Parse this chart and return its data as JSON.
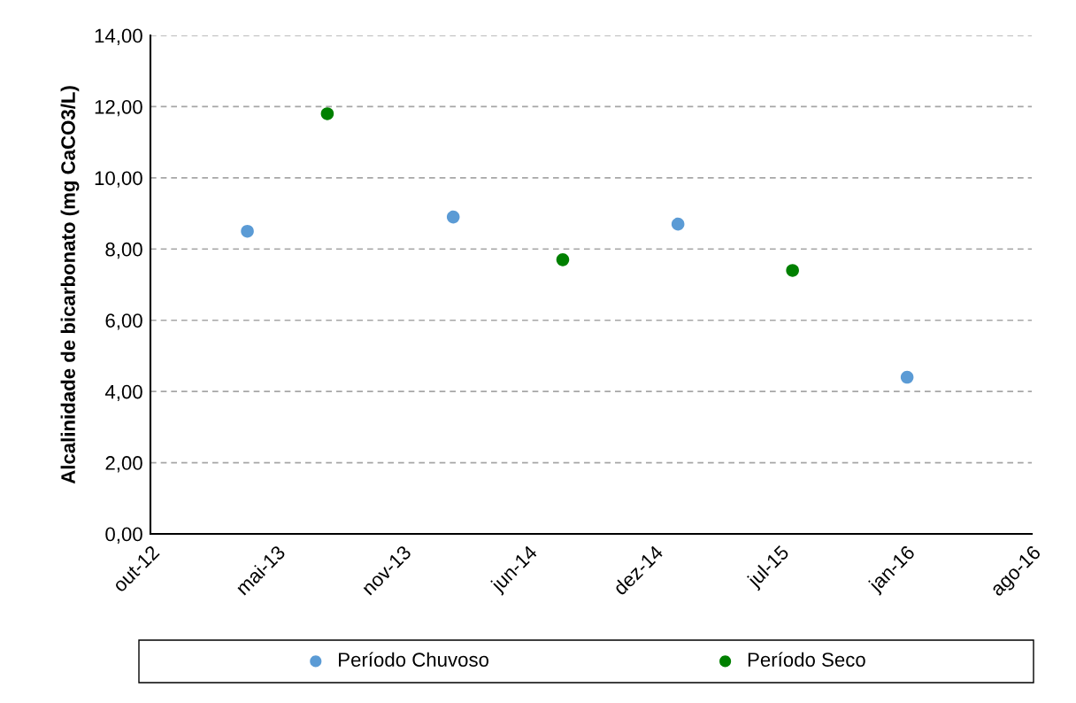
{
  "chart_data": {
    "type": "scatter",
    "ylabel": "Alcalinidade de bicarbonato (mg CaCO3/L)",
    "series": [
      {
        "name": "Período Chuvoso",
        "color": "#5b9bd5",
        "x": [
          "2013-03-16",
          "2014-02-06",
          "2015-01-29",
          "2016-01-28"
        ],
        "values": [
          8.5,
          8.9,
          8.7,
          4.4
        ]
      },
      {
        "name": "Período Seco",
        "color": "#008000",
        "x": [
          "2013-07-21",
          "2014-07-30",
          "2015-07-30"
        ],
        "values": [
          11.8,
          7.7,
          7.4
        ]
      }
    ],
    "xlim": [
      "2012-10-13",
      "2016-08-13"
    ],
    "xticks": [
      {
        "value": "2012-10-13",
        "label": "out-12"
      },
      {
        "value": "2013-05-01",
        "label": "mai-13"
      },
      {
        "value": "2013-11-17",
        "label": "nov-13"
      },
      {
        "value": "2014-06-05",
        "label": "jun-14"
      },
      {
        "value": "2014-12-22",
        "label": "dez-14"
      },
      {
        "value": "2015-07-10",
        "label": "jul-15"
      },
      {
        "value": "2016-01-26",
        "label": "jan-16"
      },
      {
        "value": "2016-08-13",
        "label": "ago-16"
      }
    ],
    "ylim": [
      0,
      14
    ],
    "yticks": [
      {
        "value": 0,
        "label": "0,00"
      },
      {
        "value": 2,
        "label": "2,00"
      },
      {
        "value": 4,
        "label": "4,00"
      },
      {
        "value": 6,
        "label": "6,00"
      },
      {
        "value": 8,
        "label": "8,00"
      },
      {
        "value": 10,
        "label": "10,00"
      },
      {
        "value": 12,
        "label": "12,00"
      },
      {
        "value": 14,
        "label": "14,00"
      }
    ],
    "grid": "y",
    "legend": "bottom",
    "marker": "circle"
  }
}
